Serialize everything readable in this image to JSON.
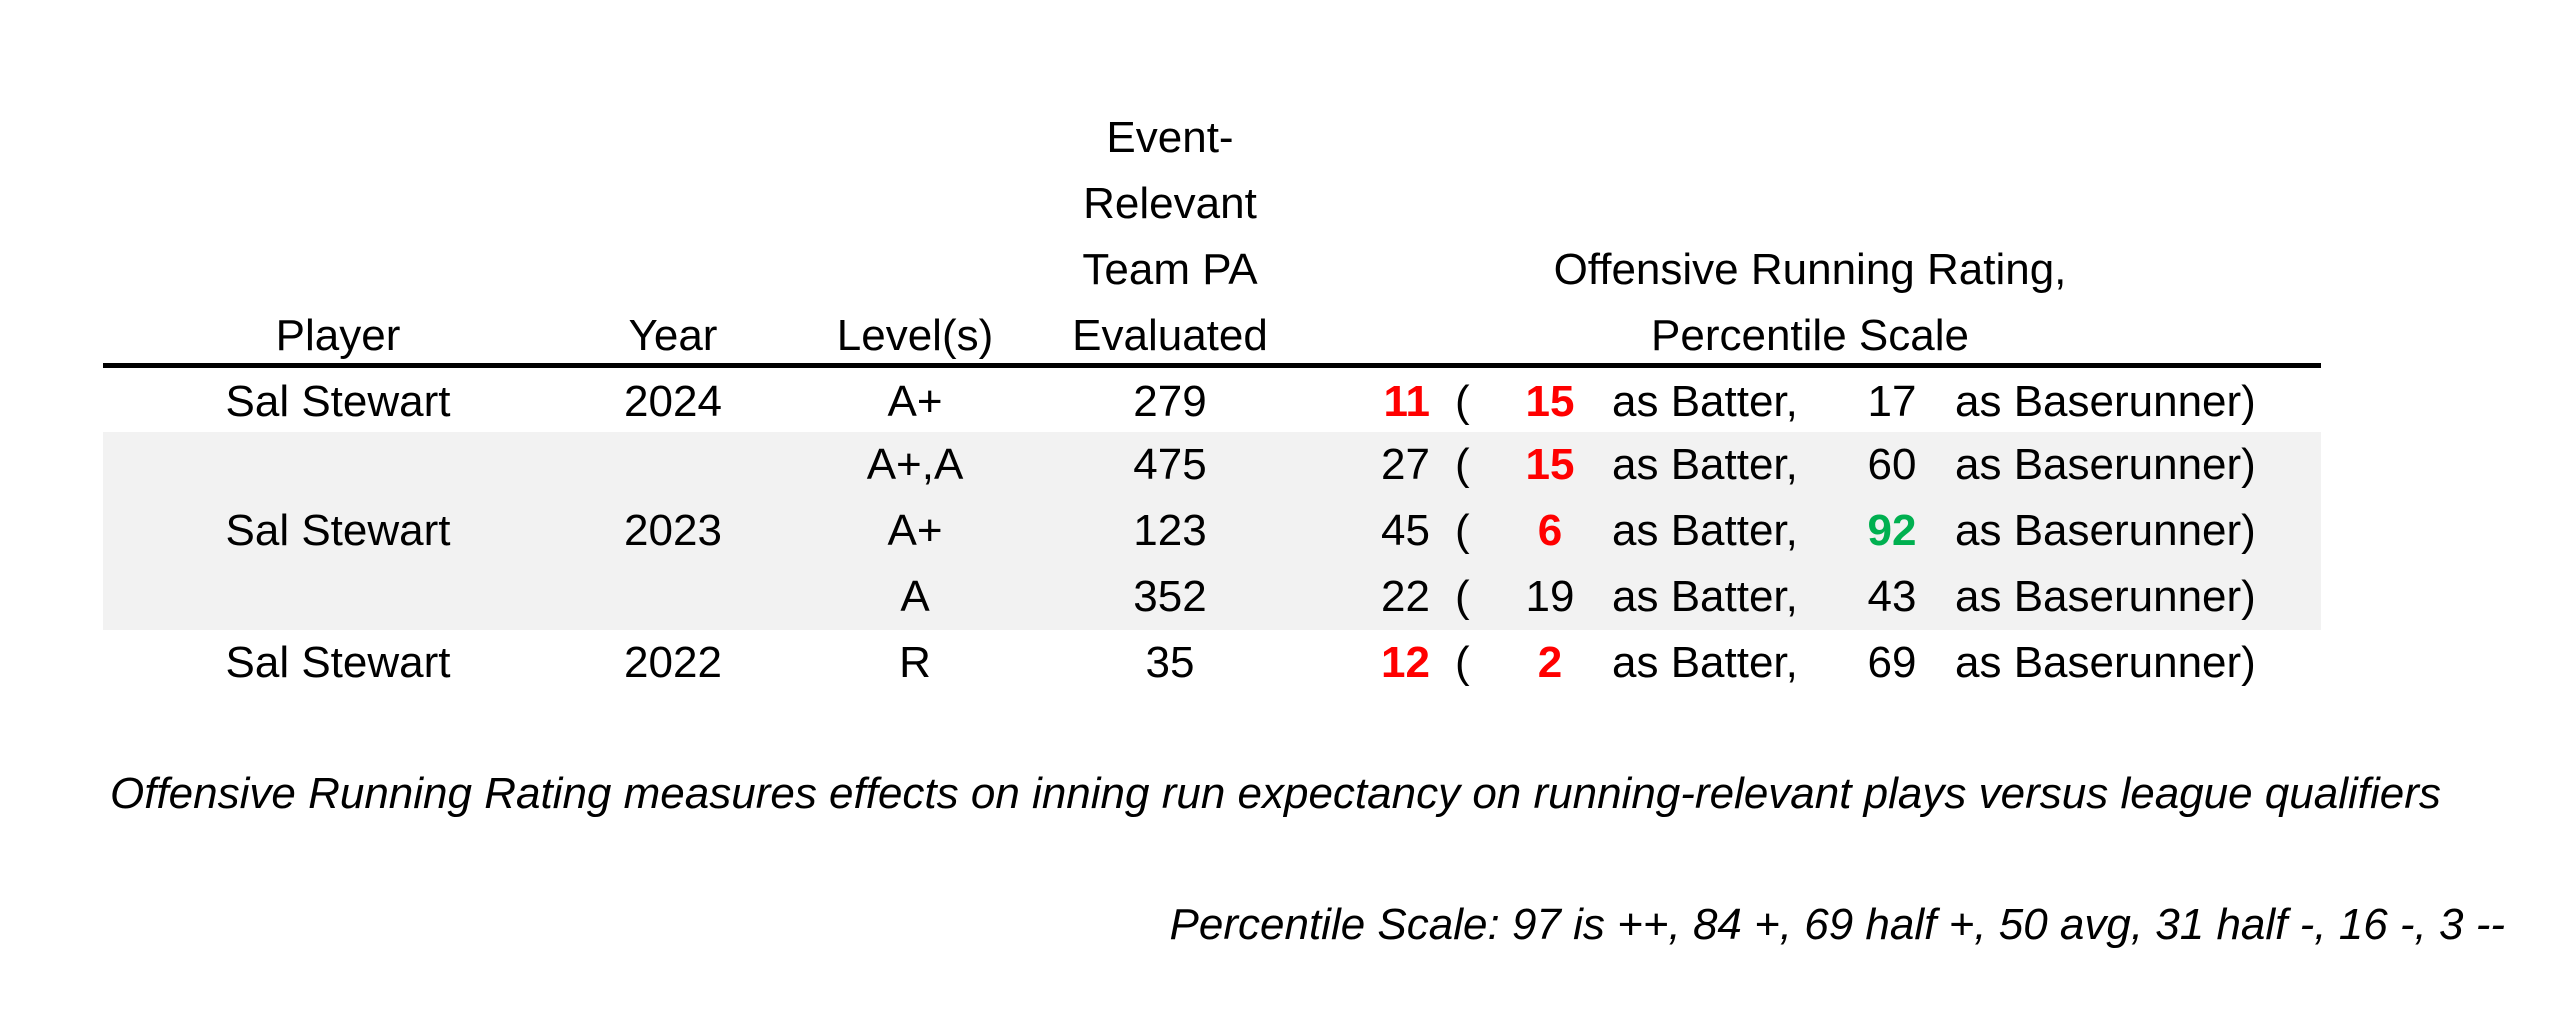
{
  "headers": {
    "player": "Player",
    "year": "Year",
    "levels": "Level(s)",
    "pa_lines": [
      "Event-",
      "Relevant",
      "Team PA",
      "Evaluated"
    ],
    "rating_lines": [
      "Offensive Running Rating,",
      "Percentile Scale"
    ]
  },
  "colors": {
    "red": "#ff0000",
    "green": "#00b050",
    "black": "#000000",
    "shade": "#f2f2f2"
  },
  "rows": [
    {
      "player": "Sal Stewart",
      "year": "2024",
      "level": "A+",
      "pa": "279",
      "overall": "11",
      "overall_color": "red",
      "open": "(",
      "batter": "15",
      "batter_color": "red",
      "as_batter": "as Batter,",
      "runner": "17",
      "runner_color": "black",
      "as_runner": "as Baserunner)",
      "shaded": false
    },
    {
      "player": "",
      "year": "",
      "level": "A+,A",
      "pa": "475",
      "overall": "27",
      "overall_color": "black",
      "open": "(",
      "batter": "15",
      "batter_color": "red",
      "as_batter": "as Batter,",
      "runner": "60",
      "runner_color": "black",
      "as_runner": "as Baserunner)",
      "shaded": true
    },
    {
      "player": "Sal Stewart",
      "year": "2023",
      "level": "A+",
      "pa": "123",
      "overall": "45",
      "overall_color": "black",
      "open": "(",
      "batter": "6",
      "batter_color": "red",
      "as_batter": "as Batter,",
      "runner": "92",
      "runner_color": "green",
      "as_runner": "as Baserunner)",
      "shaded": true
    },
    {
      "player": "",
      "year": "",
      "level": "A",
      "pa": "352",
      "overall": "22",
      "overall_color": "black",
      "open": "(",
      "batter": "19",
      "batter_color": "black",
      "as_batter": "as Batter,",
      "runner": "43",
      "runner_color": "black",
      "as_runner": "as Baserunner)",
      "shaded": true
    },
    {
      "player": "Sal Stewart",
      "year": "2022",
      "level": "R",
      "pa": "35",
      "overall": "12",
      "overall_color": "red",
      "open": "(",
      "batter": "2",
      "batter_color": "red",
      "as_batter": "as Batter,",
      "runner": "69",
      "runner_color": "black",
      "as_runner": "as Baserunner)",
      "shaded": false
    }
  ],
  "notes": {
    "definition": "Offensive Running Rating measures effects on inning run expectancy on running-relevant plays versus league qualifiers",
    "scale": "Percentile Scale: 97 is ++, 84 +, 69 half +, 50 avg, 31 half -, 16 -, 3 --"
  }
}
